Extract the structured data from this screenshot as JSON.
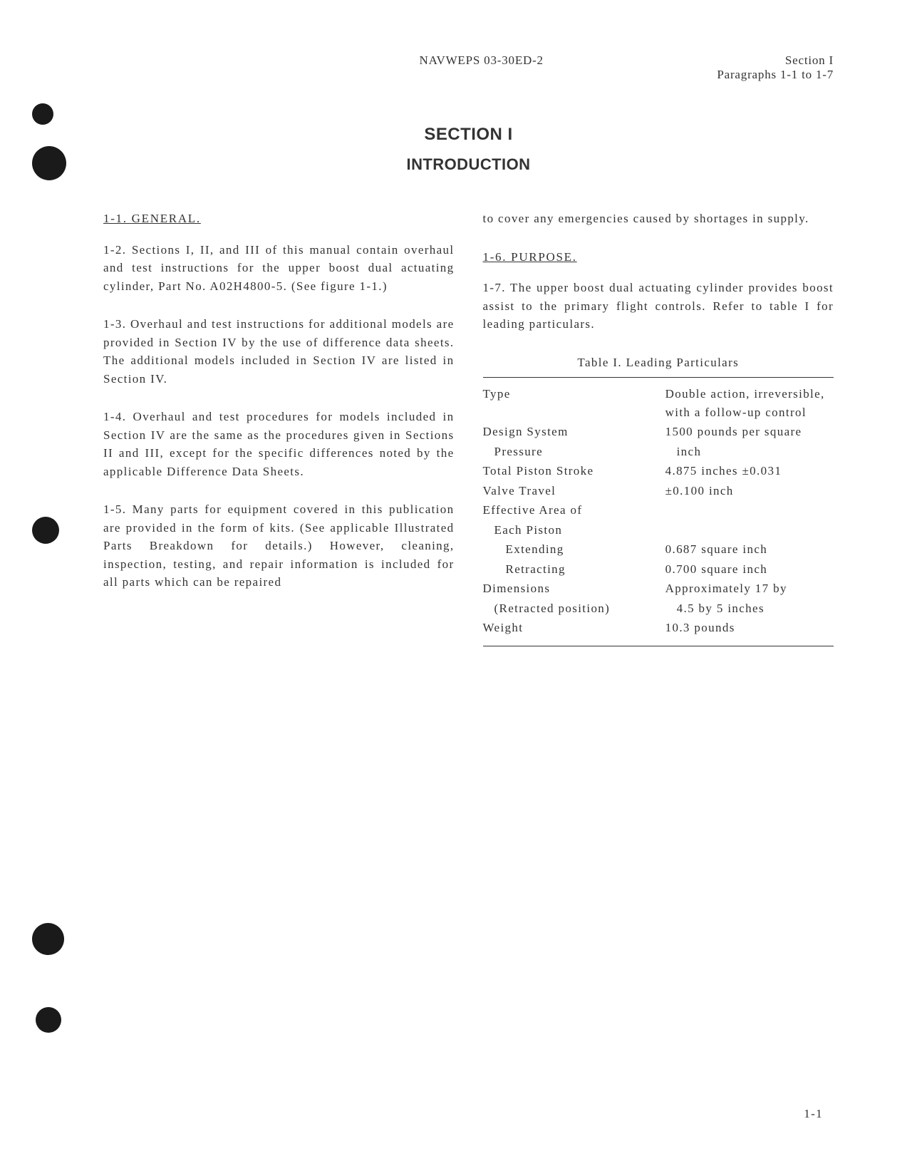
{
  "header": {
    "document_id": "NAVWEPS 03-30ED-2",
    "section": "Section I",
    "paragraph_range": "Paragraphs 1-1 to 1-7"
  },
  "title": {
    "main": "SECTION I",
    "sub": "INTRODUCTION"
  },
  "left_column": {
    "heading_1": "1-1. GENERAL.",
    "para_2": "1-2. Sections I, II, and III of this manual contain overhaul and test instructions for the upper boost dual actuating cylinder, Part No. A02H4800-5. (See figure 1-1.)",
    "para_3": "1-3. Overhaul and test instructions for additional models are provided in Section IV by the use of difference data sheets. The additional models included in Section IV are listed in Section IV.",
    "para_4": "1-4. Overhaul and test procedures for models included in Section IV are the same as the procedures given in Sections II and III, except for the specific differences noted by the applicable Difference Data Sheets.",
    "para_5": "1-5. Many parts for equipment covered in this publication are provided in the form of kits. (See applicable Illustrated Parts Breakdown for details.) However, cleaning, inspection, testing, and repair information is included for all parts which can be repaired"
  },
  "right_column": {
    "para_5_cont": "to cover any emergencies caused by shortages in supply.",
    "heading_6": "1-6. PURPOSE.",
    "para_7": "1-7. The upper boost dual actuating cylinder provides boost assist to the primary flight controls. Refer to table I for leading particulars.",
    "table_caption": "Table I. Leading Particulars"
  },
  "table": {
    "rows": [
      {
        "label": "Type",
        "value": "Double action, irreversible, with a follow-up control",
        "label_indent": 0,
        "value_indent": 0,
        "multiline": true
      },
      {
        "label": "Design System",
        "value": "1500 pounds per square",
        "label_indent": 0,
        "value_indent": 0
      },
      {
        "label": "Pressure",
        "value": "inch",
        "label_indent": 1,
        "value_indent": 1
      },
      {
        "label": "Total Piston Stroke",
        "value": "4.875 inches ±0.031",
        "label_indent": 0,
        "value_indent": 0
      },
      {
        "label": "Valve Travel",
        "value": "±0.100 inch",
        "label_indent": 0,
        "value_indent": 0
      },
      {
        "label": "Effective Area of",
        "value": "",
        "label_indent": 0,
        "value_indent": 0
      },
      {
        "label": "Each Piston",
        "value": "",
        "label_indent": 1,
        "value_indent": 0
      },
      {
        "label": "Extending",
        "value": "0.687 square inch",
        "label_indent": 2,
        "value_indent": 0
      },
      {
        "label": "Retracting",
        "value": "0.700 square inch",
        "label_indent": 2,
        "value_indent": 0
      },
      {
        "label": "Dimensions",
        "value": "Approximately 17 by",
        "label_indent": 0,
        "value_indent": 0
      },
      {
        "label": "(Retracted position)",
        "value": "4.5 by 5 inches",
        "label_indent": 1,
        "value_indent": 1
      },
      {
        "label": "Weight",
        "value": "10.3 pounds",
        "label_indent": 0,
        "value_indent": 0
      }
    ]
  },
  "page_number": "1-1"
}
